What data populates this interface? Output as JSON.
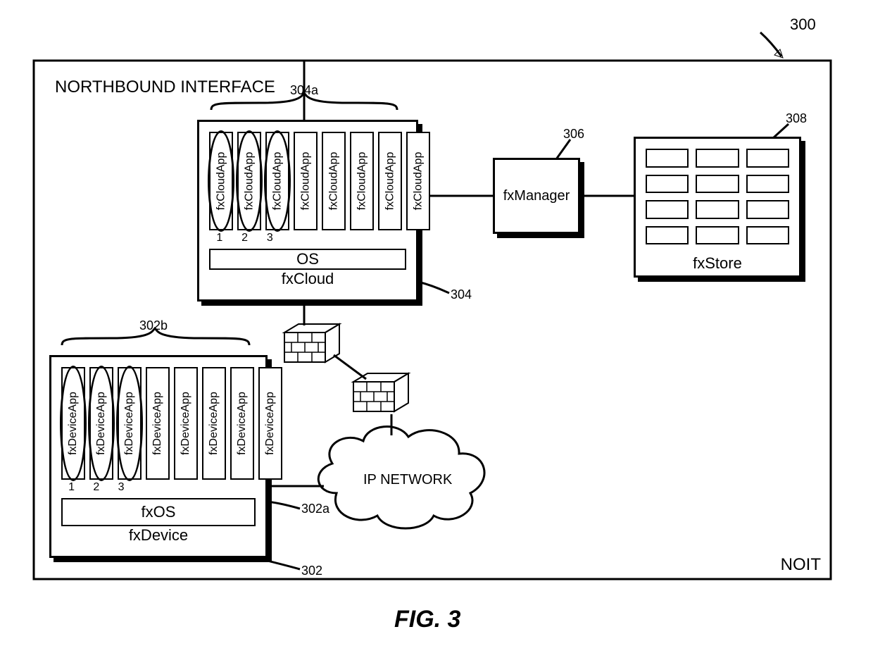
{
  "colors": {
    "stroke": "#000000",
    "background": "#ffffff",
    "line_width_main": 3,
    "line_width_sub": 2
  },
  "fonts": {
    "label_size": 22,
    "small_label_size": 18,
    "app_size": 16
  },
  "outer": {
    "ref": "300",
    "title": "NORTHBOUND INTERFACE",
    "corner": "NOIT"
  },
  "fxcloud": {
    "ref": "304",
    "apps_ref": "304a",
    "label": "fxCloud",
    "os_label": "OS",
    "app_label": "fxCloudApp",
    "app_count": 8,
    "highlighted": [
      1,
      2,
      3
    ]
  },
  "fxdevice": {
    "ref": "302",
    "os_ref": "302a",
    "apps_ref": "302b",
    "label": "fxDevice",
    "os_label": "fxOS",
    "app_label": "fxDeviceApp",
    "app_count": 8,
    "highlighted": [
      1,
      2,
      3
    ]
  },
  "fxmanager": {
    "ref": "306",
    "label": "fxManager"
  },
  "fxstore": {
    "ref": "308",
    "label": "fxStore",
    "rows": 4,
    "cols": 3
  },
  "network": {
    "label": "IP NETWORK"
  },
  "figure_label": "FIG. 3"
}
